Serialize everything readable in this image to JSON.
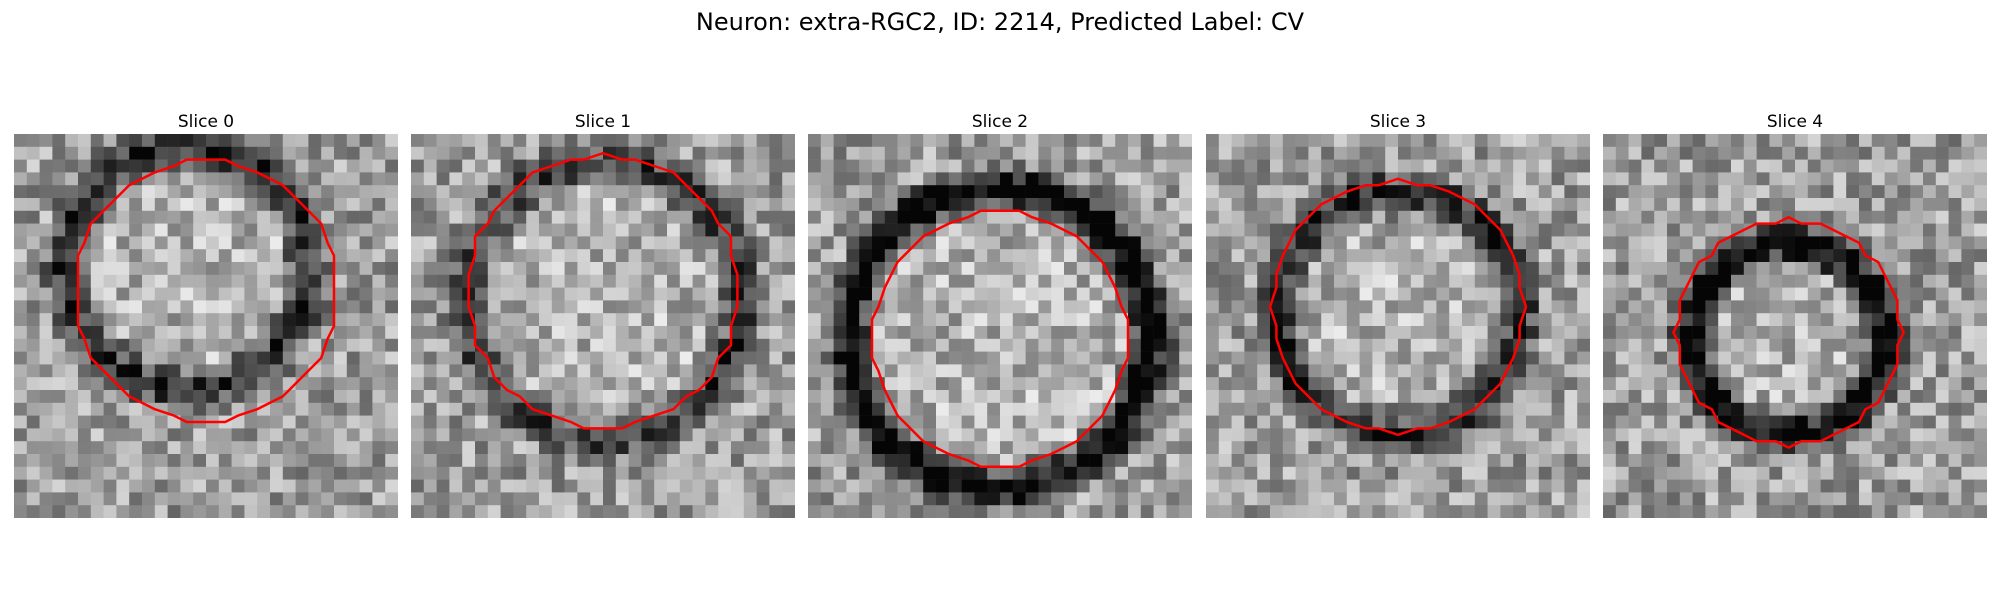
{
  "figure": {
    "title": "Neuron: extra-RGC2, ID: 2214, Predicted Label: CV"
  },
  "panels": [
    {
      "title": "Slice 0",
      "ring": {
        "cx": 13.5,
        "cy": 10.5,
        "r": 9.5,
        "dark": 0.55
      },
      "contour": {
        "cx": 15.0,
        "cy": 12.3,
        "r": 10.2
      },
      "seed": 11
    },
    {
      "title": "Slice 1",
      "ring": {
        "cx": 15.0,
        "cy": 13.0,
        "r": 10.8,
        "dark": 0.45
      },
      "contour": {
        "cx": 15.0,
        "cy": 12.3,
        "r": 10.6
      },
      "seed": 23
    },
    {
      "title": "Slice 2",
      "ring": {
        "cx": 15.0,
        "cy": 16.0,
        "r": 11.8,
        "dark": 0.75
      },
      "contour": {
        "cx": 15.0,
        "cy": 16.0,
        "r": 10.0
      },
      "seed": 37
    },
    {
      "title": "Slice 3",
      "ring": {
        "cx": 15.0,
        "cy": 14.0,
        "r": 9.5,
        "dark": 0.55
      },
      "contour": {
        "cx": 15.0,
        "cy": 13.5,
        "r": 9.8
      },
      "seed": 51
    },
    {
      "title": "Slice 4",
      "ring": {
        "cx": 14.5,
        "cy": 16.0,
        "r": 7.5,
        "dark": 0.7
      },
      "contour": {
        "cx": 14.5,
        "cy": 15.5,
        "r": 8.8
      },
      "seed": 67
    }
  ],
  "colors": {
    "contour": "#ff0000"
  },
  "grid_size": 30
}
